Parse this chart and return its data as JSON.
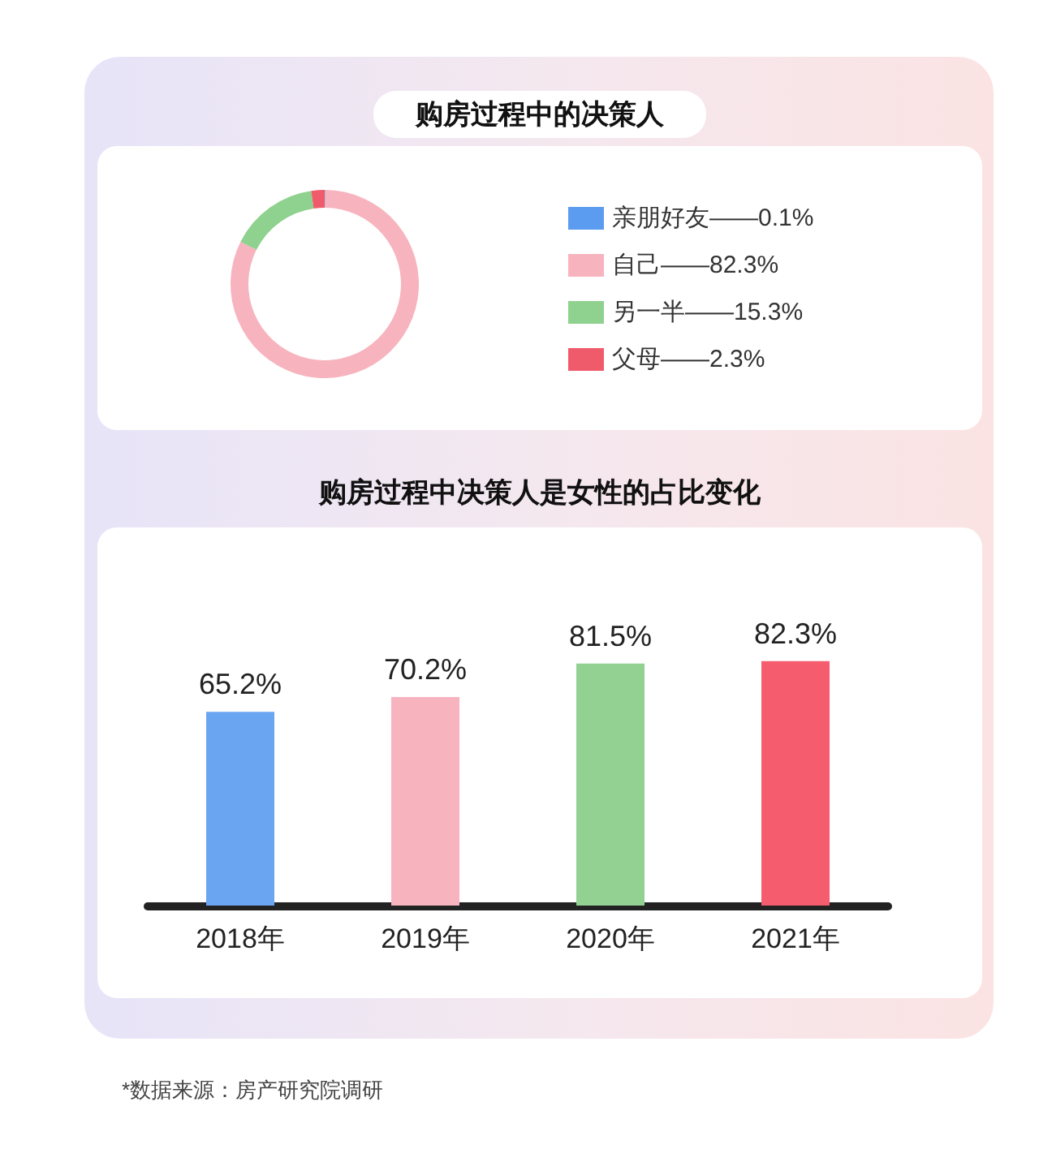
{
  "chart_data": [
    {
      "type": "donut",
      "title": "购房过程中的决策人",
      "categories": [
        "亲朋好友——0.1%",
        "自己——82.3%",
        "另一半——15.3%",
        "父母——2.3%"
      ],
      "values": [
        0.1,
        82.3,
        15.3,
        2.3
      ],
      "colors": [
        "#5b9cf0",
        "#f7b4bf",
        "#8fd18f",
        "#f05b6c"
      ],
      "legend": "right"
    },
    {
      "type": "bar",
      "title": "购房过程中决策人是女性的占比变化",
      "categories": [
        "2018年",
        "2019年",
        "2020年",
        "2021年"
      ],
      "values": [
        65.2,
        70.2,
        81.5,
        82.3
      ],
      "colors": [
        "#6aa5f2",
        "#f7b4bf",
        "#93d193",
        "#f55d6e"
      ],
      "value_labels": [
        "65.2%",
        "70.2%",
        "81.5%",
        "82.3%"
      ],
      "annotations": [
        "*数据来源：房产研究院调研"
      ]
    }
  ]
}
